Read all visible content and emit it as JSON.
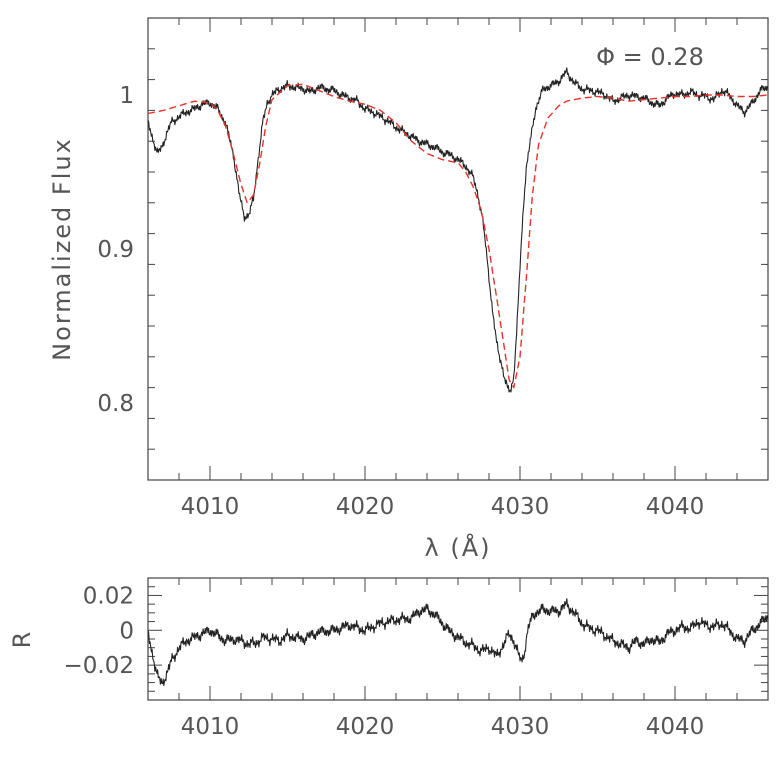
{
  "chart_data": [
    {
      "type": "line",
      "panel": "main",
      "ylabel": "Normalized Flux",
      "xlabel": "λ (Å)",
      "annotation": "Φ  =  0.28",
      "xlim": [
        4006,
        4046
      ],
      "ylim": [
        0.75,
        1.05
      ],
      "x_ticks": [
        4010,
        4020,
        4030,
        4040
      ],
      "x_tick_labels": [
        "4010",
        "4020",
        "4030",
        "4040"
      ],
      "y_ticks": [
        0.8,
        0.9,
        1.0
      ],
      "y_tick_labels": [
        "0.8",
        "0.9",
        "1"
      ],
      "series": [
        {
          "style": "solid",
          "color": "#222222",
          "x": [
            4006.0,
            4006.3,
            4006.6,
            4006.9,
            4007.2,
            4007.5,
            4008.0,
            4008.5,
            4009.0,
            4009.5,
            4010.0,
            4010.5,
            4011.0,
            4011.5,
            4011.9,
            4012.2,
            4012.5,
            4012.8,
            4013.1,
            4013.4,
            4013.7,
            4014.0,
            4014.5,
            4015.0,
            4015.5,
            4016.0,
            4016.5,
            4017.0,
            4017.5,
            4018.0,
            4018.5,
            4019.0,
            4019.5,
            4020.0,
            4020.5,
            4021.0,
            4021.5,
            4022.0,
            4022.5,
            4023.0,
            4023.5,
            4024.0,
            4024.5,
            4025.0,
            4025.5,
            4026.0,
            4026.5,
            4027.0,
            4027.3,
            4027.6,
            4027.9,
            4028.2,
            4028.5,
            4028.8,
            4029.0,
            4029.2,
            4029.4,
            4029.6,
            4029.8,
            4030.0,
            4030.2,
            4030.4,
            4030.7,
            4031.0,
            4031.5,
            4032.0,
            4032.5,
            4033.0,
            4033.5,
            4034.0,
            4034.5,
            4035.0,
            4035.5,
            4036.0,
            4036.5,
            4037.0,
            4037.5,
            4038.0,
            4038.5,
            4039.0,
            4039.5,
            4040.0,
            4040.5,
            4041.0,
            4041.5,
            4042.0,
            4042.5,
            4043.0,
            4043.5,
            4044.0,
            4044.5,
            4045.0,
            4045.5,
            4046.0
          ],
          "y": [
            0.982,
            0.972,
            0.962,
            0.966,
            0.975,
            0.982,
            0.986,
            0.989,
            0.991,
            0.994,
            0.995,
            0.991,
            0.982,
            0.962,
            0.935,
            0.921,
            0.922,
            0.932,
            0.958,
            0.982,
            0.995,
            1.0,
            1.004,
            1.006,
            1.005,
            1.004,
            1.002,
            1.005,
            1.004,
            1.003,
            1.0,
            0.998,
            0.996,
            0.991,
            0.989,
            0.986,
            0.983,
            0.979,
            0.976,
            0.973,
            0.97,
            0.968,
            0.966,
            0.963,
            0.961,
            0.958,
            0.954,
            0.946,
            0.935,
            0.918,
            0.892,
            0.862,
            0.838,
            0.826,
            0.816,
            0.809,
            0.808,
            0.818,
            0.848,
            0.888,
            0.925,
            0.952,
            0.972,
            0.991,
            1.004,
            1.006,
            1.009,
            1.015,
            1.008,
            1.004,
            1.003,
            1.002,
            1.0,
            0.996,
            0.998,
            1.0,
            0.999,
            0.998,
            0.995,
            0.993,
            0.998,
            1.001,
            1.0,
            1.002,
            1.0,
            0.999,
            0.997,
            1.003,
            1.0,
            0.993,
            0.989,
            0.995,
            1.003,
            1.005
          ]
        },
        {
          "style": "dashed",
          "color": "#e8322a",
          "x": [
            4006.0,
            4007.0,
            4008.0,
            4009.0,
            4010.0,
            4010.5,
            4011.0,
            4011.5,
            4012.0,
            4012.4,
            4012.8,
            4013.2,
            4013.6,
            4014.0,
            4015.0,
            4016.0,
            4017.0,
            4018.0,
            4019.0,
            4020.0,
            4021.0,
            4022.0,
            4023.0,
            4024.0,
            4025.0,
            4026.0,
            4026.5,
            4027.0,
            4027.5,
            4028.0,
            4028.5,
            4029.0,
            4029.3,
            4029.6,
            4030.0,
            4030.4,
            4030.8,
            4031.2,
            4031.8,
            4032.5,
            4033.0,
            4034.0,
            4035.0,
            4036.0,
            4037.0,
            4038.0,
            4039.0,
            4040.0,
            4041.0,
            4042.0,
            4043.0,
            4044.0,
            4045.0,
            4046.0
          ],
          "y": [
            0.988,
            0.99,
            0.993,
            0.996,
            0.995,
            0.99,
            0.98,
            0.962,
            0.942,
            0.93,
            0.935,
            0.955,
            0.98,
            0.997,
            1.006,
            1.007,
            1.003,
            0.999,
            0.996,
            0.994,
            0.99,
            0.982,
            0.97,
            0.962,
            0.958,
            0.956,
            0.95,
            0.94,
            0.925,
            0.9,
            0.868,
            0.835,
            0.815,
            0.81,
            0.83,
            0.88,
            0.935,
            0.968,
            0.985,
            0.993,
            0.996,
            0.998,
            0.999,
            0.998,
            0.996,
            0.997,
            0.998,
            0.999,
            0.999,
            1.0,
            1.0,
            0.999,
            0.999,
            1.0
          ]
        }
      ]
    },
    {
      "type": "line",
      "panel": "residual",
      "ylabel": "R",
      "xlim": [
        4006,
        4046
      ],
      "ylim": [
        -0.04,
        0.03
      ],
      "x_ticks": [
        4010,
        4020,
        4030,
        4040
      ],
      "x_tick_labels": [
        "4010",
        "4020",
        "4030",
        "4040"
      ],
      "y_ticks": [
        -0.02,
        0,
        0.02
      ],
      "y_tick_labels": [
        "−0.02",
        "0",
        "0.02"
      ],
      "series": [
        {
          "style": "solid",
          "color": "#222222",
          "x": [
            4006.0,
            4006.3,
            4006.6,
            4006.9,
            4007.2,
            4007.5,
            4008.0,
            4008.5,
            4009.0,
            4009.5,
            4010.0,
            4010.5,
            4011.0,
            4011.5,
            4012.0,
            4012.5,
            4013.0,
            4013.5,
            4014.0,
            4014.5,
            4015.0,
            4016.0,
            4017.0,
            4018.0,
            4019.0,
            4020.0,
            4021.0,
            4022.0,
            4023.0,
            4023.5,
            4024.0,
            4024.5,
            4025.0,
            4025.5,
            4026.0,
            4026.5,
            4027.0,
            4027.5,
            4028.0,
            4028.5,
            4029.0,
            4029.3,
            4029.6,
            4029.9,
            4030.1,
            4030.3,
            4030.5,
            4030.8,
            4031.0,
            4031.5,
            4032.0,
            4032.5,
            4033.0,
            4033.5,
            4034.0,
            4034.5,
            4035.0,
            4035.5,
            4036.0,
            4036.5,
            4037.0,
            4037.5,
            4038.0,
            4038.5,
            4039.0,
            4039.5,
            4040.0,
            4040.5,
            4041.0,
            4041.5,
            4042.0,
            4042.5,
            4043.0,
            4043.5,
            4044.0,
            4044.5,
            4045.0,
            4045.5,
            4046.0
          ],
          "y": [
            -0.002,
            -0.014,
            -0.026,
            -0.031,
            -0.025,
            -0.018,
            -0.01,
            -0.006,
            -0.004,
            -0.002,
            0.0,
            -0.003,
            -0.006,
            -0.005,
            -0.006,
            -0.008,
            -0.007,
            -0.004,
            -0.005,
            -0.006,
            -0.003,
            -0.005,
            -0.001,
            0.0,
            0.003,
            0.0,
            0.004,
            0.006,
            0.007,
            0.011,
            0.012,
            0.009,
            0.004,
            -0.001,
            -0.004,
            -0.007,
            -0.009,
            -0.012,
            -0.01,
            -0.015,
            -0.007,
            -0.002,
            -0.006,
            -0.014,
            -0.018,
            -0.012,
            0.0,
            0.008,
            0.01,
            0.012,
            0.011,
            0.011,
            0.015,
            0.01,
            0.004,
            0.001,
            0.0,
            -0.003,
            -0.006,
            -0.008,
            -0.01,
            -0.006,
            -0.008,
            -0.005,
            -0.007,
            -0.002,
            0.0,
            0.002,
            0.001,
            0.005,
            0.003,
            0.002,
            0.004,
            0.0,
            -0.005,
            -0.006,
            0.0,
            0.004,
            0.008
          ]
        }
      ]
    }
  ]
}
